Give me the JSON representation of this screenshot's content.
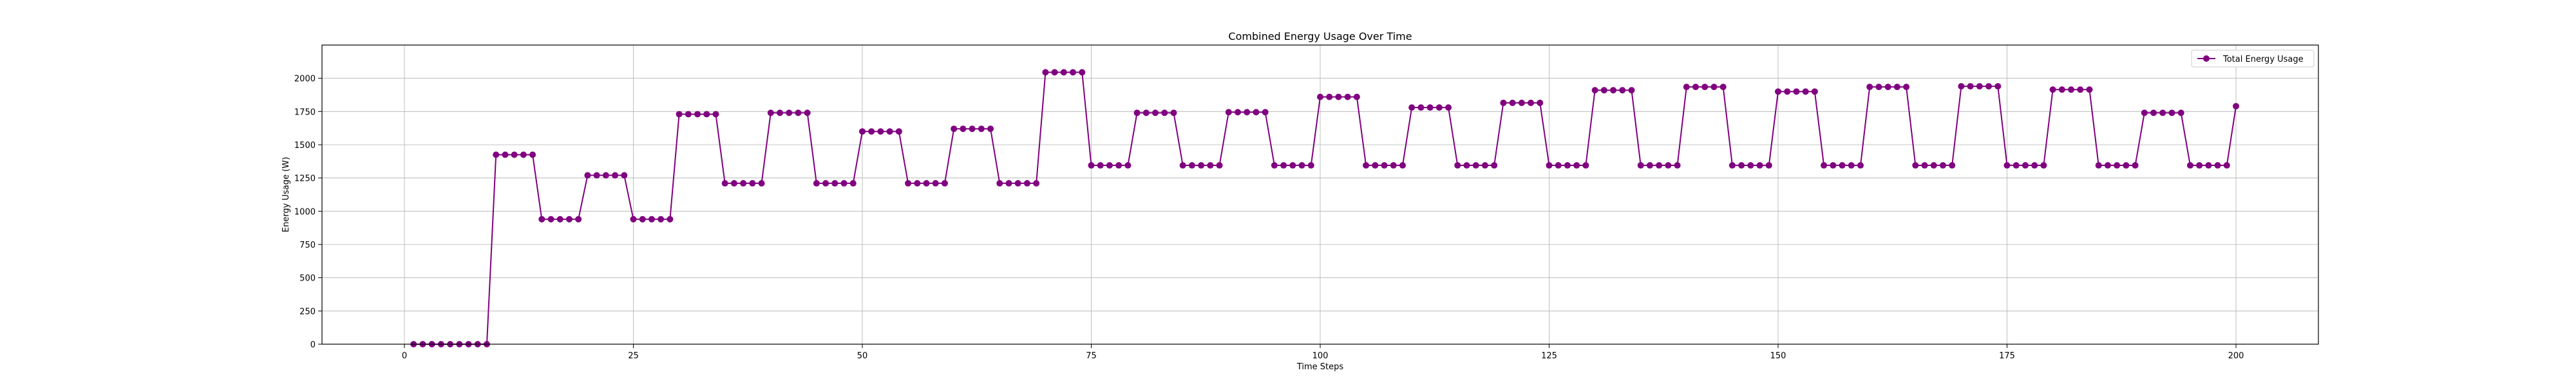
{
  "chart_data": {
    "type": "line",
    "title": "Combined Energy Usage Over Time",
    "xlabel": "Time Steps",
    "ylabel": "Energy Usage (W)",
    "xlim": [
      -9,
      209
    ],
    "ylim": [
      0,
      2250
    ],
    "xticks": [
      0,
      25,
      50,
      75,
      100,
      125,
      150,
      175,
      200
    ],
    "yticks": [
      0,
      250,
      500,
      750,
      1000,
      1250,
      1500,
      1750,
      2000
    ],
    "grid": true,
    "legend_position": "top-right",
    "color": "#800080",
    "series": [
      {
        "name": "Total Energy Usage",
        "x": [
          1,
          2,
          3,
          4,
          5,
          6,
          7,
          8,
          9,
          10,
          11,
          12,
          13,
          14,
          15,
          16,
          17,
          18,
          19,
          20,
          21,
          22,
          23,
          24,
          25,
          26,
          27,
          28,
          29,
          30,
          31,
          32,
          33,
          34,
          35,
          36,
          37,
          38,
          39,
          40,
          41,
          42,
          43,
          44,
          45,
          46,
          47,
          48,
          49,
          50,
          51,
          52,
          53,
          54,
          55,
          56,
          57,
          58,
          59,
          60,
          61,
          62,
          63,
          64,
          65,
          66,
          67,
          68,
          69,
          70,
          71,
          72,
          73,
          74,
          75,
          76,
          77,
          78,
          79,
          80,
          81,
          82,
          83,
          84,
          85,
          86,
          87,
          88,
          89,
          90,
          91,
          92,
          93,
          94,
          95,
          96,
          97,
          98,
          99,
          100,
          101,
          102,
          103,
          104,
          105,
          106,
          107,
          108,
          109,
          110,
          111,
          112,
          113,
          114,
          115,
          116,
          117,
          118,
          119,
          120,
          121,
          122,
          123,
          124,
          125,
          126,
          127,
          128,
          129,
          130,
          131,
          132,
          133,
          134,
          135,
          136,
          137,
          138,
          139,
          140,
          141,
          142,
          143,
          144,
          145,
          146,
          147,
          148,
          149,
          150,
          151,
          152,
          153,
          154,
          155,
          156,
          157,
          158,
          159,
          160,
          161,
          162,
          163,
          164,
          165,
          166,
          167,
          168,
          169,
          170,
          171,
          172,
          173,
          174,
          175,
          176,
          177,
          178,
          179,
          180,
          181,
          182,
          183,
          184,
          185,
          186,
          187,
          188,
          189,
          190,
          191,
          192,
          193,
          194,
          195,
          196,
          197,
          198,
          199,
          200
        ],
        "y": [
          0,
          0,
          0,
          0,
          0,
          0,
          0,
          0,
          0,
          1425,
          1425,
          1425,
          1425,
          1425,
          940,
          940,
          940,
          940,
          940,
          1270,
          1270,
          1270,
          1270,
          1270,
          940,
          940,
          940,
          940,
          940,
          1730,
          1730,
          1730,
          1730,
          1730,
          1210,
          1210,
          1210,
          1210,
          1210,
          1740,
          1740,
          1740,
          1740,
          1740,
          1210,
          1210,
          1210,
          1210,
          1210,
          1600,
          1600,
          1600,
          1600,
          1600,
          1210,
          1210,
          1210,
          1210,
          1210,
          1620,
          1620,
          1620,
          1620,
          1620,
          1210,
          1210,
          1210,
          1210,
          1210,
          2045,
          2045,
          2045,
          2045,
          2045,
          1345,
          1345,
          1345,
          1345,
          1345,
          1740,
          1740,
          1740,
          1740,
          1740,
          1345,
          1345,
          1345,
          1345,
          1345,
          1745,
          1745,
          1745,
          1745,
          1745,
          1345,
          1345,
          1345,
          1345,
          1345,
          1860,
          1860,
          1860,
          1860,
          1860,
          1345,
          1345,
          1345,
          1345,
          1345,
          1780,
          1780,
          1780,
          1780,
          1780,
          1345,
          1345,
          1345,
          1345,
          1345,
          1815,
          1815,
          1815,
          1815,
          1815,
          1345,
          1345,
          1345,
          1345,
          1345,
          1910,
          1910,
          1910,
          1910,
          1910,
          1345,
          1345,
          1345,
          1345,
          1345,
          1935,
          1935,
          1935,
          1935,
          1935,
          1345,
          1345,
          1345,
          1345,
          1345,
          1900,
          1900,
          1900,
          1900,
          1900,
          1345,
          1345,
          1345,
          1345,
          1345,
          1935,
          1935,
          1935,
          1935,
          1935,
          1345,
          1345,
          1345,
          1345,
          1345,
          1940,
          1940,
          1940,
          1940,
          1940,
          1345,
          1345,
          1345,
          1345,
          1345,
          1915,
          1915,
          1915,
          1915,
          1915,
          1345,
          1345,
          1345,
          1345,
          1345,
          1740,
          1740,
          1740,
          1740,
          1740,
          1345,
          1345,
          1345,
          1345,
          1345,
          1790
        ]
      }
    ]
  }
}
